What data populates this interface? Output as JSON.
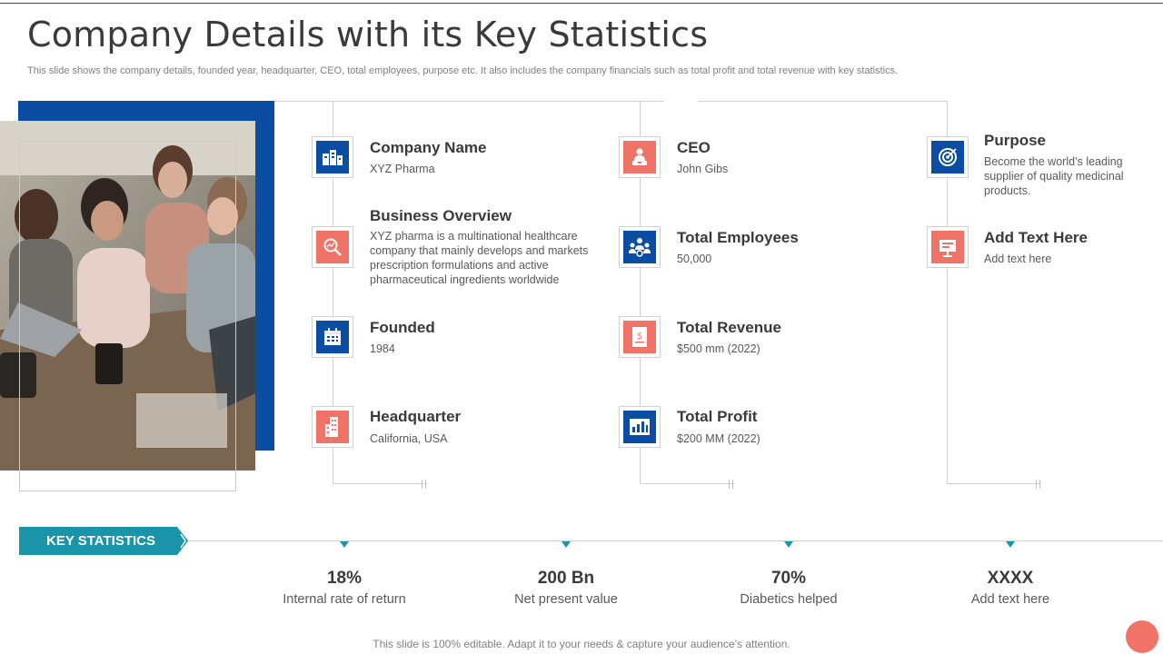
{
  "slide": {
    "title": "Company Details with its Key Statistics",
    "subtitle": "This slide shows the company details, founded year, headquarter, CEO, total employees, purpose etc. It also includes the company financials such as total profit and total revenue with key statistics.",
    "footer": "This slide is 100% editable. Adapt it to your needs & capture your audience’s attention."
  },
  "colors": {
    "accent_blue": "#0b4da2",
    "accent_coral": "#f07368",
    "teal": "#1a94a8"
  },
  "column1": [
    {
      "title": "Company Name",
      "text": "XYZ Pharma",
      "icon": "building-icon"
    },
    {
      "title": "Business Overview",
      "text": "XYZ pharma is a multinational healthcare company that mainly develops and markets prescription formulations and active pharmaceutical ingredients worldwide",
      "icon": "magnifier-icon"
    },
    {
      "title": "Founded",
      "text": "1984",
      "icon": "calendar-icon"
    },
    {
      "title": "Headquarter",
      "text": "California,  USA",
      "icon": "office-building-icon"
    }
  ],
  "column2": [
    {
      "title": "CEO",
      "text": "John Gibs",
      "icon": "person-at-desk-icon"
    },
    {
      "title": "Total Employees",
      "text": "50,000",
      "icon": "team-icon"
    },
    {
      "title": "Total Revenue",
      "text": "$500 mm (2022)",
      "icon": "dollar-document-icon"
    },
    {
      "title": "Total Profit",
      "text": "$200 MM (2022)",
      "icon": "finance-report-icon"
    }
  ],
  "column3": [
    {
      "title": "Purpose",
      "text": "Become the world’s leading supplier of quality medicinal products.",
      "icon": "target-icon"
    },
    {
      "title": "Add Text Here",
      "text": "Add text here",
      "icon": "presentation-icon"
    }
  ],
  "key_statistics": {
    "label": "KEY STATISTICS",
    "items": [
      {
        "value": "18%",
        "label": "Internal rate of return"
      },
      {
        "value": "200 Bn",
        "label": "Net present value"
      },
      {
        "value": "70%",
        "label": "Diabetics helped"
      },
      {
        "value": "XXXX",
        "label": "Add text here"
      }
    ]
  }
}
